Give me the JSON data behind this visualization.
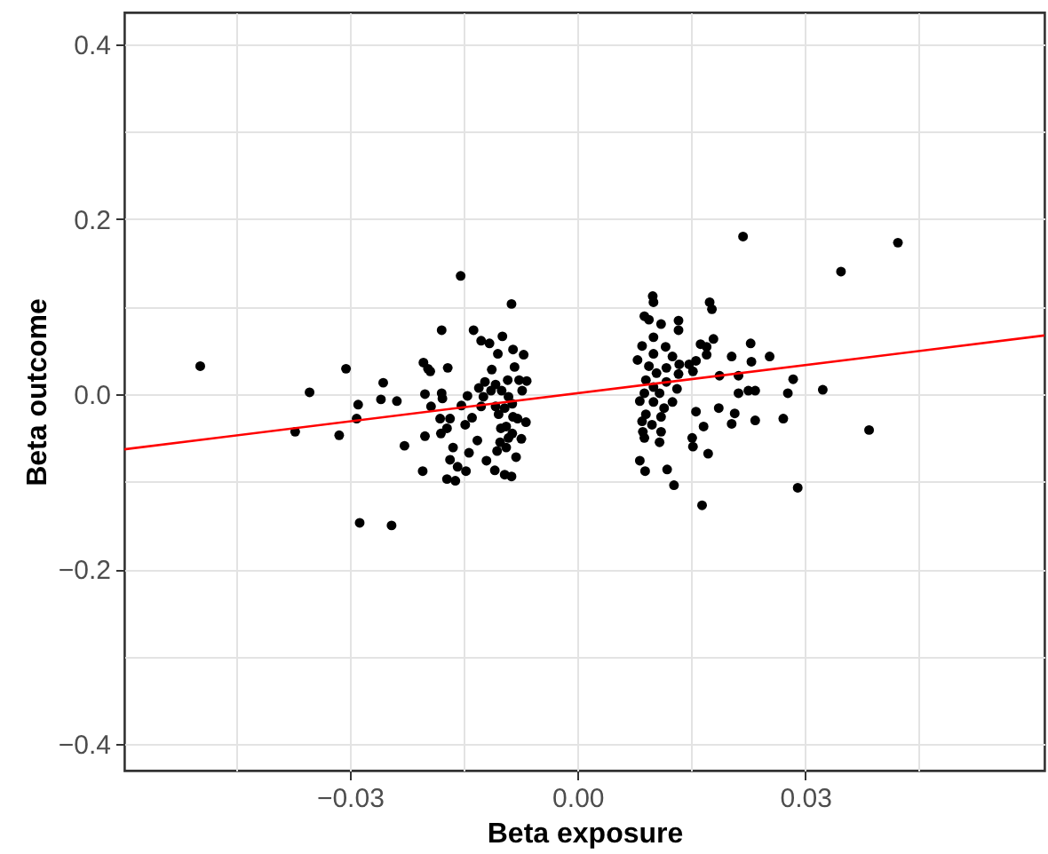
{
  "chart_data": {
    "type": "scatter",
    "xlabel": "Beta exposure",
    "ylabel": "Beta outcome",
    "xlim": [
      -0.0597,
      0.0615
    ],
    "ylim": [
      -0.43,
      0.436
    ],
    "xticks": [
      {
        "value": -0.045,
        "label": null
      },
      {
        "value": -0.03,
        "label": "−0.03"
      },
      {
        "value": -0.015,
        "label": null
      },
      {
        "value": 0,
        "label": "0.00"
      },
      {
        "value": 0.015,
        "label": null
      },
      {
        "value": 0.03,
        "label": "0.03"
      },
      {
        "value": 0.045,
        "label": null
      }
    ],
    "yticks": [
      {
        "value": -0.4,
        "label": "−0.4"
      },
      {
        "value": -0.3,
        "label": null
      },
      {
        "value": -0.2,
        "label": "−0.2"
      },
      {
        "value": -0.1,
        "label": null
      },
      {
        "value": 0,
        "label": "0.0"
      },
      {
        "value": 0.1,
        "label": null
      },
      {
        "value": 0.2,
        "label": "0.2"
      },
      {
        "value": 0.3,
        "label": null
      },
      {
        "value": 0.4,
        "label": "0.4"
      }
    ],
    "grid": true,
    "series": [
      {
        "color": "#000000",
        "marker": "circle",
        "x": [
          -0.0497,
          -0.0305,
          -0.0353,
          -0.0256,
          -0.0259,
          -0.0238,
          -0.0289,
          -0.0291,
          -0.0372,
          -0.0314,
          -0.0228,
          -0.0287,
          -0.0245,
          -0.0154,
          -0.0087,
          -0.0179,
          -0.0137,
          -0.0127,
          -0.0116,
          -0.0099,
          -0.0105,
          -0.0085,
          -0.0071,
          -0.0203,
          -0.0197,
          -0.0194,
          -0.0171,
          -0.0113,
          -0.0083,
          -0.0201,
          -0.0179,
          -0.0178,
          -0.0145,
          -0.013,
          -0.0122,
          -0.0108,
          -0.0092,
          -0.0077,
          -0.0067,
          -0.0073,
          -0.0193,
          -0.0153,
          -0.0127,
          -0.0108,
          -0.0086,
          -0.0181,
          -0.0168,
          -0.0139,
          -0.0104,
          -0.0079,
          -0.0068,
          -0.0172,
          -0.0148,
          -0.018,
          -0.0201,
          -0.0101,
          -0.0086,
          -0.0074,
          -0.0132,
          -0.0164,
          -0.0102,
          -0.0094,
          -0.0143,
          -0.0106,
          -0.0081,
          -0.0168,
          -0.012,
          -0.0158,
          -0.0147,
          -0.0204,
          -0.0109,
          -0.0172,
          -0.0161,
          -0.0096,
          -0.0087,
          -0.01,
          -0.0091,
          -0.0096,
          -0.0085,
          -0.0094,
          -0.0091,
          -0.0114,
          -0.0124,
          0.0218,
          0.0099,
          0.01,
          0.0174,
          0.0177,
          0.0088,
          0.0094,
          0.011,
          0.0133,
          0.0133,
          0.01,
          0.0179,
          0.0085,
          0.0116,
          0.0162,
          0.017,
          0.0228,
          0.01,
          0.0125,
          0.0079,
          0.017,
          0.0203,
          0.0253,
          0.0229,
          0.0134,
          0.0147,
          0.0156,
          0.0094,
          0.0117,
          0.0152,
          0.0104,
          0.0133,
          0.0187,
          0.0212,
          0.009,
          0.0117,
          0.01,
          0.0131,
          0.0088,
          0.0108,
          0.0212,
          0.0225,
          0.0234,
          0.0277,
          0.0082,
          0.01,
          0.0125,
          0.0114,
          0.0156,
          0.0186,
          0.0207,
          0.009,
          0.011,
          0.0085,
          0.0098,
          0.0166,
          0.0203,
          0.0234,
          0.0271,
          0.0086,
          0.011,
          0.0088,
          0.0151,
          0.0108,
          0.0152,
          0.0172,
          0.0082,
          0.0089,
          0.0118,
          0.0127,
          0.0164,
          0.0347,
          0.0422,
          0.0284,
          0.0323,
          0.0384,
          0.029
        ],
        "values": [
          0.032,
          0.029,
          0.002,
          0.013,
          -0.006,
          -0.008,
          -0.012,
          -0.028,
          -0.043,
          -0.047,
          -0.059,
          -0.147,
          -0.15,
          0.135,
          0.103,
          0.073,
          0.073,
          0.061,
          0.058,
          0.066,
          0.046,
          0.051,
          0.045,
          0.036,
          0.029,
          0.026,
          0.03,
          0.028,
          0.031,
          0.0,
          0.001,
          -0.005,
          -0.002,
          0.007,
          0.014,
          0.011,
          0.016,
          0.016,
          0.015,
          0.004,
          -0.014,
          -0.013,
          -0.014,
          -0.014,
          -0.011,
          -0.028,
          -0.028,
          -0.027,
          -0.023,
          -0.028,
          -0.032,
          -0.039,
          -0.035,
          -0.045,
          -0.048,
          -0.039,
          -0.045,
          -0.051,
          -0.053,
          -0.061,
          -0.055,
          -0.061,
          -0.067,
          -0.065,
          -0.072,
          -0.075,
          -0.076,
          -0.083,
          -0.088,
          -0.088,
          -0.087,
          -0.097,
          -0.099,
          -0.092,
          -0.094,
          0.004,
          -0.003,
          -0.016,
          -0.026,
          -0.037,
          -0.05,
          0.004,
          -0.003,
          0.18,
          0.112,
          0.105,
          0.105,
          0.097,
          0.089,
          0.085,
          0.08,
          0.084,
          0.073,
          0.065,
          0.063,
          0.055,
          0.054,
          0.057,
          0.054,
          0.058,
          0.046,
          0.043,
          0.039,
          0.045,
          0.043,
          0.043,
          0.037,
          0.034,
          0.034,
          0.038,
          0.032,
          0.03,
          0.026,
          0.024,
          0.023,
          0.021,
          0.021,
          0.016,
          0.014,
          0.008,
          0.006,
          0.001,
          0.001,
          0.001,
          0.004,
          0.004,
          0.001,
          -0.008,
          -0.009,
          -0.009,
          -0.016,
          -0.02,
          -0.016,
          -0.022,
          -0.023,
          -0.026,
          -0.031,
          -0.035,
          -0.037,
          -0.034,
          -0.03,
          -0.028,
          -0.043,
          -0.043,
          -0.05,
          -0.05,
          -0.055,
          -0.06,
          -0.068,
          -0.076,
          -0.088,
          -0.086,
          -0.104,
          -0.127,
          0.14,
          0.173,
          0.017,
          0.005,
          -0.041,
          -0.107
        ]
      },
      {
        "type": "line",
        "marker": "none",
        "color": "#ff0000",
        "x": [
          -0.0597,
          0.0615
        ],
        "values": [
          -0.063,
          0.067
        ]
      }
    ]
  }
}
